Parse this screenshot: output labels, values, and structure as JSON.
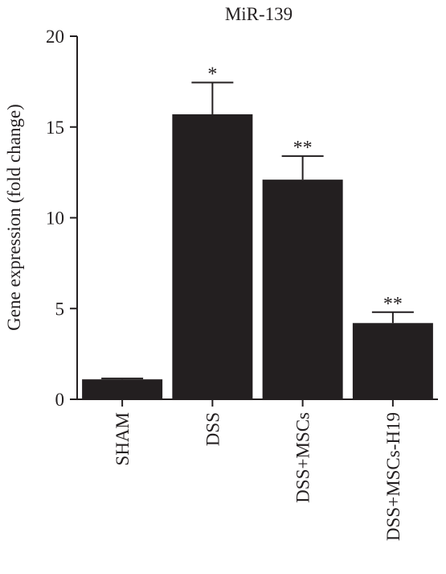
{
  "chart_data": {
    "type": "bar",
    "title": "MiR-139",
    "xlabel": "",
    "ylabel": "Gene expression (fold change)",
    "ylim": [
      0,
      20
    ],
    "yticks": [
      0,
      5,
      10,
      15,
      20
    ],
    "categories": [
      "SHAM",
      "DSS",
      "DSS+MSCs",
      "DSS+MSCs-H19"
    ],
    "values": [
      1.1,
      15.7,
      12.1,
      4.2
    ],
    "errors": [
      0.05,
      1.75,
      1.3,
      0.6
    ],
    "annotations": [
      "",
      "*",
      "**",
      "**"
    ],
    "bar_color": "#231f20",
    "grid": false,
    "legend": "none"
  }
}
